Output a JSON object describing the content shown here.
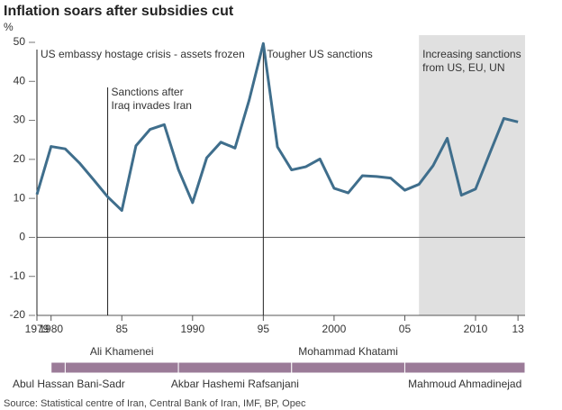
{
  "chart_data": {
    "type": "line",
    "title": "Inflation soars after subsidies cut",
    "y_label": "%",
    "x": [
      1979,
      1980,
      1981,
      1982,
      1983,
      1984,
      1985,
      1986,
      1987,
      1988,
      1989,
      1990,
      1991,
      1992,
      1993,
      1994,
      1995,
      1996,
      1997,
      1998,
      1999,
      2000,
      2001,
      2002,
      2003,
      2004,
      2005,
      2006,
      2007,
      2008,
      2009,
      2010,
      2011,
      2012,
      2013
    ],
    "series": [
      {
        "name": "Inflation",
        "color": "#3f6e8c",
        "values": [
          11,
          23.3,
          22.7,
          19.1,
          14.8,
          10.4,
          6.9,
          23.5,
          27.7,
          28.9,
          17.4,
          8.9,
          20.4,
          24.4,
          22.9,
          35.2,
          49.7,
          23.2,
          17.3,
          18.1,
          20.1,
          12.6,
          11.4,
          15.8,
          15.6,
          15.2,
          12.1,
          13.6,
          18.4,
          25.4,
          10.8,
          12.4,
          21.5,
          30.5,
          29.6
        ]
      }
    ],
    "xlim": [
      1979,
      2013.5
    ],
    "ylim": [
      -20,
      50
    ],
    "xticks": [
      1979,
      1980,
      {
        "value": 1985,
        "label": "85"
      },
      1990,
      {
        "value": 1995,
        "label": "95"
      },
      2000,
      {
        "value": 2005,
        "label": "05"
      },
      2010,
      {
        "value": 2013,
        "label": "13"
      }
    ],
    "yticks": [
      -20,
      -10,
      0,
      10,
      20,
      30,
      40,
      50
    ],
    "events": [
      {
        "x": 1979,
        "lines": [
          "US embassy hostage crisis - assets frozen"
        ]
      },
      {
        "x": 1984,
        "lines": [
          "Sanctions after",
          "Iraq invades Iran"
        ]
      },
      {
        "x": 1995,
        "lines": [
          "Tougher US sanctions"
        ]
      }
    ],
    "shaded_region": {
      "start": 2006,
      "lines": [
        "Increasing sanctions",
        "from US, EU, UN"
      ],
      "color": "#e0e0e0"
    },
    "leaders": [
      {
        "name": "Abul Hassan Bani-Sadr",
        "start": 1980,
        "end": 1981
      },
      {
        "name": "Ali Khamenei",
        "start": 1981,
        "end": 1989
      },
      {
        "name": "Akbar Hashemi Rafsanjani",
        "start": 1989,
        "end": 1997
      },
      {
        "name": "Mohammad Khatami",
        "start": 1997,
        "end": 2005
      },
      {
        "name": "Mahmoud Ahmadinejad",
        "start": 2005,
        "end": 2013.5
      }
    ],
    "leader_color": "#9b7b98",
    "source": "Source: Statistical centre of Iran, Central Bank of Iran, IMF, BP, Opec"
  }
}
